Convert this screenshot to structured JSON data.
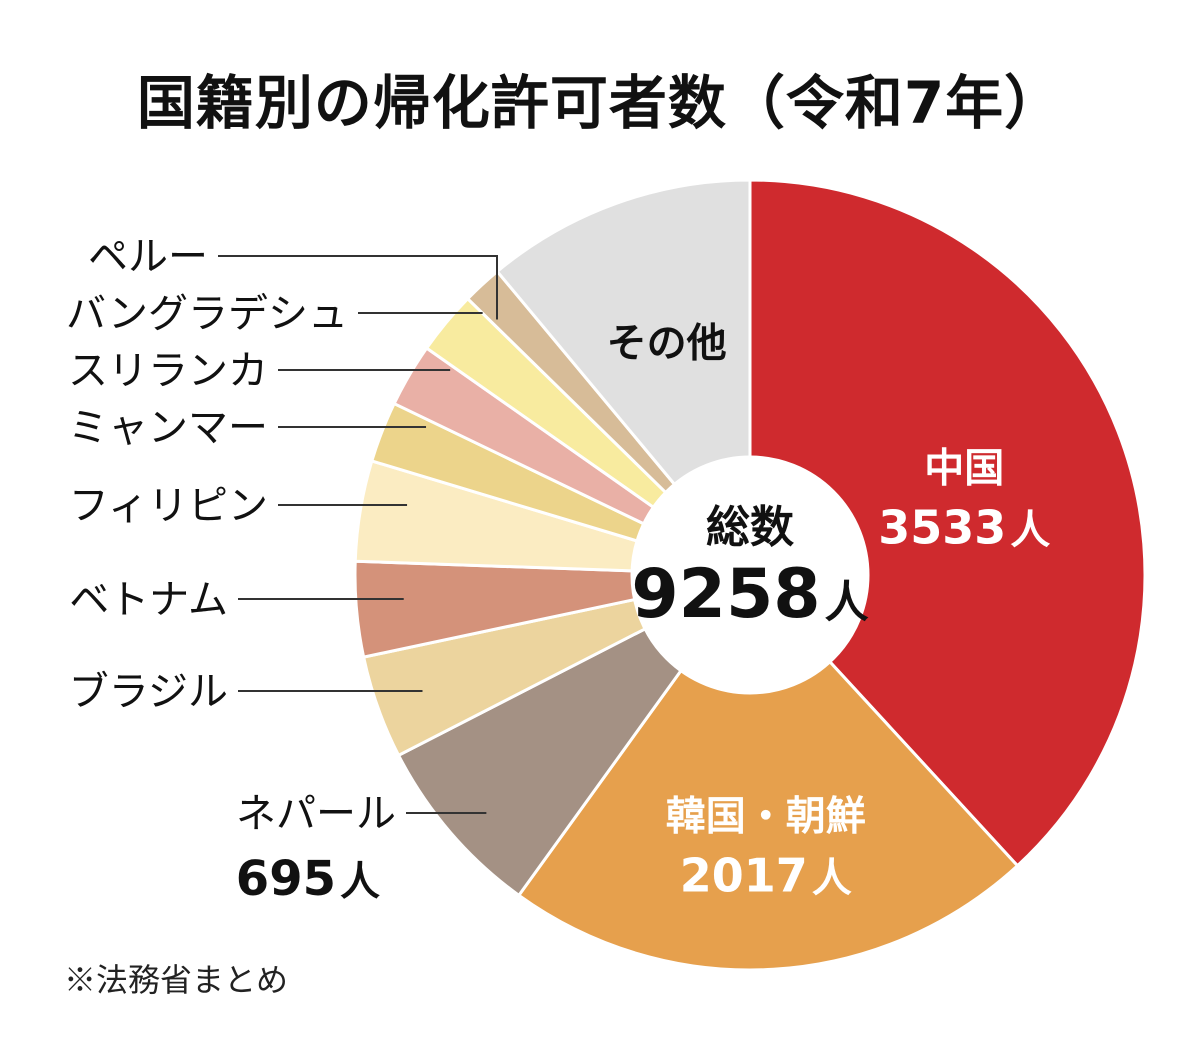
{
  "title": "国籍別の帰化許可者数（令和7年）",
  "note": "※法務省まとめ",
  "center": {
    "label": "総数",
    "total": "9258",
    "unit": "人"
  },
  "unit": "人",
  "chart_data": {
    "type": "pie",
    "title": "国籍別の帰化許可者数（令和7年）",
    "total": 9258,
    "slices": [
      {
        "name": "中国",
        "value": 3533,
        "value_label": "3533",
        "color": "#cf2a2e",
        "label_color": "#ffffff"
      },
      {
        "name": "韓国・朝鮮",
        "value": 2017,
        "value_label": "2017",
        "color": "#e6a04d",
        "label_color": "#ffffff"
      },
      {
        "name": "ネパール",
        "value": 695,
        "value_label": "695",
        "color": "#a49184"
      },
      {
        "name": "ブラジル",
        "value": 390,
        "color": "#ecd49e"
      },
      {
        "name": "ベトナム",
        "value": 360,
        "color": "#d4927a"
      },
      {
        "name": "フィリピン",
        "value": 380,
        "color": "#fbecc2"
      },
      {
        "name": "ミャンマー",
        "value": 230,
        "color": "#ecd48b"
      },
      {
        "name": "スリランカ",
        "value": 240,
        "color": "#e9b0a6"
      },
      {
        "name": "バングラデシュ",
        "value": 240,
        "color": "#f8eb9f"
      },
      {
        "name": "ペルー",
        "value": 150,
        "color": "#d7bc98"
      },
      {
        "name": "その他",
        "value": 1023,
        "color": "#e0e0e0",
        "label_color": "#111111"
      }
    ]
  }
}
